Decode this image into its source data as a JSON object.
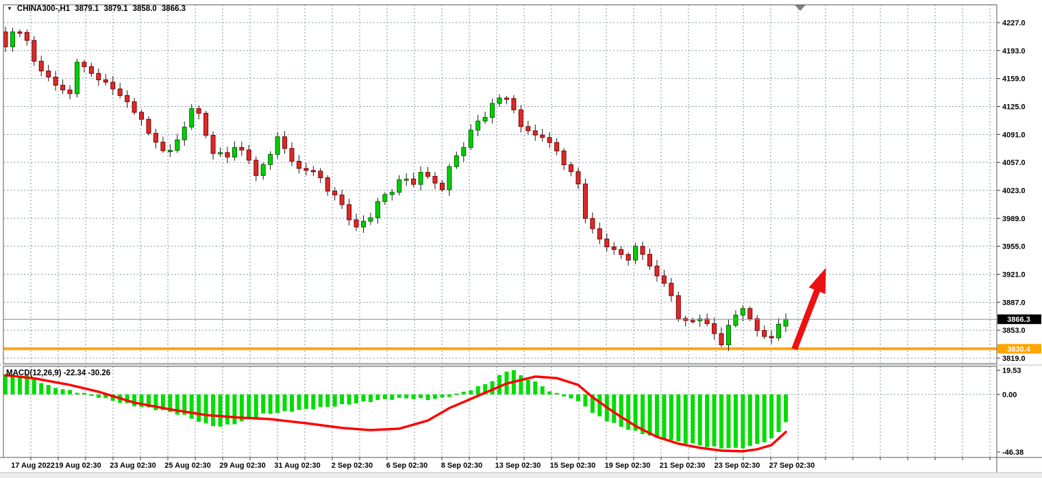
{
  "header": {
    "dropdown_glyph": "▼",
    "symbol_period": "CHINA300-,H1",
    "open": "3879.1",
    "high": "3879.1",
    "low": "3858.0",
    "close": "3866.3"
  },
  "price_axis": {
    "tick_labels": [
      "4227.0",
      "4193.0",
      "4159.0",
      "4125.0",
      "4091.0",
      "4057.0",
      "4023.0",
      "3989.0",
      "3955.0",
      "3921.0",
      "3887.0",
      "3853.0",
      "3819.0"
    ],
    "current_price_badge": {
      "value": "3866.3",
      "bg": "#000000",
      "fg": "#ffffff"
    },
    "level_badge": {
      "value": "3830.4",
      "bg": "#ffa500",
      "fg": "#ffffff"
    }
  },
  "time_axis": {
    "labels": [
      "17 Aug 2022",
      "19 Aug 02:30",
      "23 Aug 02:30",
      "25 Aug 02:30",
      "29 Aug 02:30",
      "31 Aug 02:30",
      "2 Sep 02:30",
      "6 Sep 02:30",
      "8 Sep 02:30",
      "13 Sep 02:30",
      "15 Sep 02:30",
      "19 Sep 02:30",
      "21 Sep 02:30",
      "23 Sep 02:30",
      "27 Sep 02:30"
    ]
  },
  "macd_panel": {
    "label": "MACD(12,26,9) -22.34 -30.26",
    "tick_labels": [
      "19.53",
      "0.00",
      "-46.38"
    ]
  },
  "chart_data": {
    "type": "candlestick",
    "symbol": "CHINA300",
    "timeframe": "H1",
    "current_bar": {
      "open": 3879.1,
      "high": 3879.1,
      "low": 3858.0,
      "close": 3866.3
    },
    "price_axis": {
      "max_tick": 4227.0,
      "min_tick": 3819.0,
      "tick_step": 34.0
    },
    "levels": {
      "current_price": 3866.3,
      "support": 3830.4
    },
    "candle_count": 110,
    "close_path_anchors": [
      [
        0,
        4195
      ],
      [
        1,
        4212
      ],
      [
        2,
        4216
      ],
      [
        3,
        4205
      ],
      [
        4,
        4178
      ],
      [
        6,
        4164
      ],
      [
        7,
        4150
      ],
      [
        9,
        4143
      ],
      [
        10,
        4176
      ],
      [
        12,
        4166
      ],
      [
        13,
        4155
      ],
      [
        15,
        4149
      ],
      [
        16,
        4140
      ],
      [
        17,
        4130
      ],
      [
        19,
        4112
      ],
      [
        20,
        4090
      ],
      [
        22,
        4072
      ],
      [
        23,
        4068
      ],
      [
        24,
        4082
      ],
      [
        26,
        4122
      ],
      [
        27,
        4116
      ],
      [
        28,
        4094
      ],
      [
        29,
        4070
      ],
      [
        31,
        4065
      ],
      [
        32,
        4076
      ],
      [
        33,
        4068
      ],
      [
        34,
        4058
      ],
      [
        35,
        4042
      ],
      [
        36,
        4052
      ],
      [
        37,
        4066
      ],
      [
        38,
        4092
      ],
      [
        40,
        4058
      ],
      [
        42,
        4048
      ],
      [
        44,
        4038
      ],
      [
        45,
        4022
      ],
      [
        47,
        4005
      ],
      [
        48,
        3990
      ],
      [
        49,
        3978
      ],
      [
        51,
        3994
      ],
      [
        52,
        4010
      ],
      [
        54,
        4022
      ],
      [
        55,
        4035
      ],
      [
        57,
        4030
      ],
      [
        58,
        4046
      ],
      [
        59,
        4038
      ],
      [
        61,
        4028
      ],
      [
        62,
        4052
      ],
      [
        64,
        4078
      ],
      [
        65,
        4095
      ],
      [
        67,
        4112
      ],
      [
        68,
        4128
      ],
      [
        70,
        4136
      ],
      [
        71,
        4124
      ],
      [
        72,
        4100
      ],
      [
        74,
        4094
      ],
      [
        75,
        4086
      ],
      [
        77,
        4072
      ],
      [
        78,
        4052
      ],
      [
        80,
        4032
      ],
      [
        81,
        3990
      ],
      [
        82,
        3975
      ],
      [
        84,
        3958
      ],
      [
        85,
        3950
      ],
      [
        87,
        3940
      ],
      [
        88,
        3952
      ],
      [
        90,
        3932
      ],
      [
        91,
        3918
      ],
      [
        93,
        3898
      ],
      [
        94,
        3870
      ],
      [
        95,
        3864
      ],
      [
        97,
        3869
      ],
      [
        98,
        3858
      ],
      [
        100,
        3836
      ],
      [
        101,
        3856
      ],
      [
        103,
        3882
      ],
      [
        104,
        3868
      ],
      [
        105,
        3852
      ],
      [
        107,
        3846
      ],
      [
        108,
        3858
      ],
      [
        109,
        3866.3
      ]
    ],
    "macd": {
      "params": [
        12,
        26,
        9
      ],
      "main_current": -22.34,
      "signal_current": -30.26,
      "axis": {
        "max": 19.53,
        "zero": 0.0,
        "min": -46.38
      },
      "histogram_anchors": [
        [
          0,
          16
        ],
        [
          3,
          15
        ],
        [
          6,
          7
        ],
        [
          9,
          3
        ],
        [
          11,
          1
        ],
        [
          13,
          -2
        ],
        [
          15,
          -5
        ],
        [
          18,
          -9
        ],
        [
          22,
          -13
        ],
        [
          25,
          -17
        ],
        [
          28,
          -24
        ],
        [
          30,
          -26
        ],
        [
          33,
          -22
        ],
        [
          36,
          -16
        ],
        [
          39,
          -14
        ],
        [
          42,
          -12
        ],
        [
          45,
          -10
        ],
        [
          49,
          -7
        ],
        [
          53,
          -4
        ],
        [
          56,
          -3
        ],
        [
          59,
          -4
        ],
        [
          61,
          -3
        ],
        [
          64,
          2
        ],
        [
          66,
          6
        ],
        [
          68,
          11
        ],
        [
          70,
          19
        ],
        [
          71,
          19.5
        ],
        [
          72,
          15
        ],
        [
          74,
          10
        ],
        [
          76,
          3
        ],
        [
          77,
          0.5
        ],
        [
          79,
          -3
        ],
        [
          81,
          -9
        ],
        [
          82,
          -15
        ],
        [
          84,
          -21
        ],
        [
          86,
          -26
        ],
        [
          88,
          -30
        ],
        [
          90,
          -33
        ],
        [
          92,
          -36
        ],
        [
          94,
          -38
        ],
        [
          96,
          -40
        ],
        [
          98,
          -42
        ],
        [
          100,
          -43
        ],
        [
          102,
          -43.5
        ],
        [
          104,
          -42
        ],
        [
          105,
          -40
        ],
        [
          107,
          -36
        ],
        [
          108,
          -30
        ],
        [
          109,
          -22.34
        ]
      ],
      "signal_anchors": [
        [
          0,
          15.5
        ],
        [
          4,
          13
        ],
        [
          9,
          7.7
        ],
        [
          13,
          2.2
        ],
        [
          18,
          -6.6
        ],
        [
          23,
          -12
        ],
        [
          28,
          -16.6
        ],
        [
          33,
          -18.8
        ],
        [
          37,
          -19.9
        ],
        [
          42,
          -23.2
        ],
        [
          47,
          -27
        ],
        [
          51,
          -28.7
        ],
        [
          55,
          -27.6
        ],
        [
          59,
          -21
        ],
        [
          62,
          -11
        ],
        [
          66,
          -1.1
        ],
        [
          70,
          8.8
        ],
        [
          74,
          14.4
        ],
        [
          77,
          13.2
        ],
        [
          80,
          7.7
        ],
        [
          82,
          -2.2
        ],
        [
          85,
          -14.4
        ],
        [
          88,
          -25.4
        ],
        [
          91,
          -34.2
        ],
        [
          94,
          -39.7
        ],
        [
          97,
          -43
        ],
        [
          100,
          -45.3
        ],
        [
          103,
          -45.8
        ],
        [
          105,
          -44.2
        ],
        [
          107,
          -40.8
        ],
        [
          109,
          -30.26
        ]
      ]
    },
    "annotations": [
      {
        "type": "up-arrow",
        "from_candle": 110.2,
        "from_price": 3830,
        "to_candle": 114.6,
        "to_price": 3929,
        "color": "#ee1111"
      },
      {
        "type": "shift-marker",
        "at_candle": 111.0
      }
    ],
    "colors": {
      "background": "#ffffff",
      "grid": "#8593a3",
      "bull_fill": "#00cf00",
      "bull_border": "#006600",
      "bear_fill": "#d92b2b",
      "bear_border": "#7e0000",
      "wick": "#151515",
      "histogram": "#00dd00",
      "signal_line": "#ff0000",
      "support_line": "#ffa500",
      "current_price_line": "#7c8ea0",
      "arrow": "#ee1111",
      "border": "#565656"
    }
  }
}
